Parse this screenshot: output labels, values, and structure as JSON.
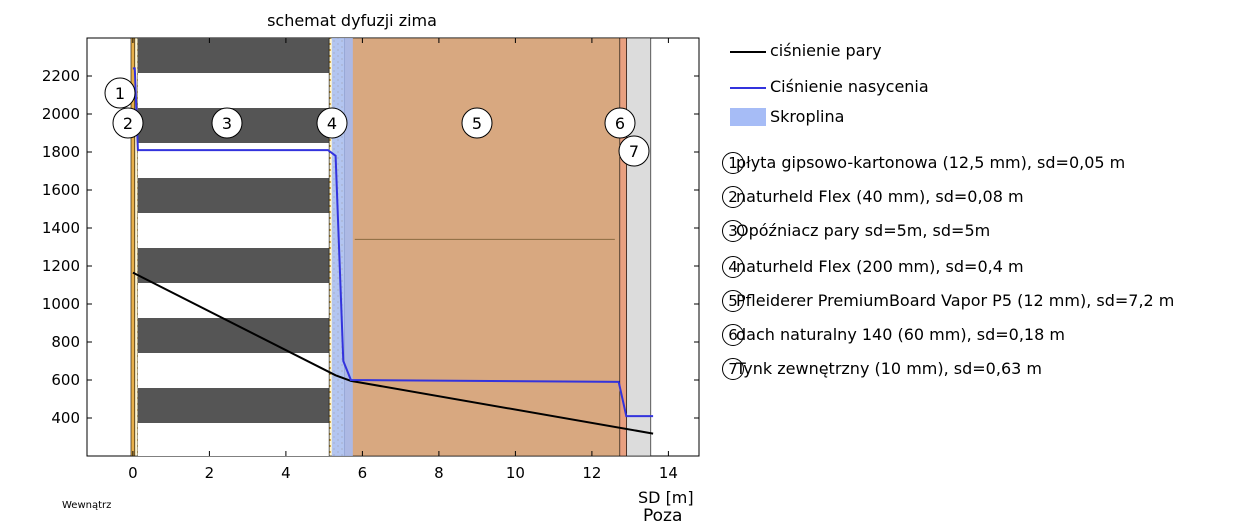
{
  "chart_data": {
    "type": "line",
    "title": "schemat dyfuzji zima",
    "xlabel": "SD [m]",
    "ylabel": "",
    "xlim": [
      -1.2,
      14.8
    ],
    "ylim": [
      200,
      2400
    ],
    "xticks": [
      0,
      2,
      4,
      6,
      8,
      10,
      12,
      14
    ],
    "yticks": [
      400,
      600,
      800,
      1000,
      1200,
      1400,
      1600,
      1800,
      2000,
      2200
    ],
    "inside_label": "Wewnątrz",
    "outside_label": "Poza",
    "series": [
      {
        "name": "ciśnienie pary",
        "color": "#000000",
        "x": [
          0.0,
          5.3,
          5.7,
          13.6
        ],
        "y": [
          1165,
          625,
          595,
          318
        ]
      },
      {
        "name": "Ciśnienie nasycenia",
        "color": "#3333dd",
        "x": [
          0.0,
          0.05,
          0.13,
          5.1,
          5.3,
          5.5,
          5.7,
          12.7,
          12.9,
          13.6
        ],
        "y": [
          2240,
          2240,
          1810,
          1810,
          1780,
          700,
          600,
          590,
          410,
          410
        ]
      }
    ],
    "condensate": {
      "name": "Skroplina",
      "color": "#a6bcf6",
      "x_range": [
        5.2,
        5.75
      ]
    },
    "layers": [
      {
        "num": "1",
        "label": "płyta gipsowo-kartonowa (12,5 mm), sd=0,05 m",
        "x_start": -0.05,
        "x_end": 0.05,
        "color": "#e8b04a"
      },
      {
        "num": "2",
        "label": "naturheld Flex (40 mm), sd=0,08 m",
        "x_start": 0.05,
        "x_end": 0.13,
        "color": "#f0f0f0"
      },
      {
        "num": "3",
        "label": "Opóźniacz pary sd=5m, sd=5m",
        "x_start": 0.13,
        "x_end": 5.13,
        "color": "#555555"
      },
      {
        "num": "4",
        "label": "naturheld Flex (200 mm), sd=0,4 m",
        "x_start": 5.13,
        "x_end": 5.53,
        "color": "#e8b04a"
      },
      {
        "num": "5",
        "label": "Pfleiderer PremiumBoard Vapor P5 (12 mm), sd=7,2 m",
        "x_start": 5.53,
        "x_end": 12.73,
        "color": "#d8a880"
      },
      {
        "num": "6",
        "label": "dach naturalny 140 (60 mm), sd=0,18 m",
        "x_start": 12.73,
        "x_end": 12.91,
        "color": "#e8a080"
      },
      {
        "num": "7",
        "label": "Tynk zewnętrzny (10 mm), sd=0,63 m",
        "x_start": 12.91,
        "x_end": 13.54,
        "color": "#dcdcdc"
      }
    ],
    "legend_position": "right"
  }
}
